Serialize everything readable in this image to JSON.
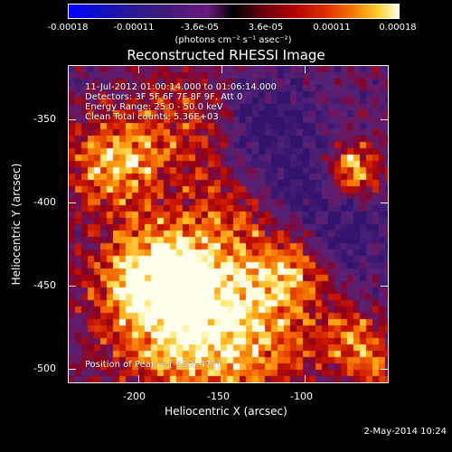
{
  "colorbar": {
    "ticks": [
      "-0.00018",
      "-0.00011",
      "-3.6e-05",
      "3.6e-05",
      "0.00011",
      "0.00018"
    ],
    "unit": "(photons cm⁻² s⁻¹ asec⁻²)"
  },
  "title": "Reconstructed RHESSI Image",
  "annotations": {
    "time_range": "11-Jul-2012 01:00:14.000 to 01:06:14.000",
    "detectors": "Detectors: 3F 5F 6F 7F 8F 9F, Att 0",
    "energy_range": "Energy Range: 25.0 - 50.0 keV",
    "method": "Clean     Total counts: 5.36E+03",
    "peak": "Position of Peak = [-153,-471]"
  },
  "axes": {
    "xlabel": "Heliocentric X (arcsec)",
    "ylabel": "Heliocentric Y (arcsec)",
    "xticks": [
      "-200",
      "-150",
      "-100"
    ],
    "yticks": [
      "-350",
      "-400",
      "-450",
      "-500"
    ]
  },
  "footer": {
    "date": "2-May-2014 10:24"
  },
  "chart_data": {
    "type": "heatmap",
    "title": "Reconstructed RHESSI Image",
    "xlabel": "Heliocentric X (arcsec)",
    "ylabel": "Heliocentric Y (arcsec)",
    "xlim": [
      -244,
      -52
    ],
    "ylim": [
      -512,
      -322
    ],
    "colorbar_range": [
      -0.00018,
      0.00018
    ],
    "colorbar_unit": "photons cm^-2 s^-1 asec^-2",
    "peak_position": [
      -153,
      -471
    ],
    "grid": false
  }
}
